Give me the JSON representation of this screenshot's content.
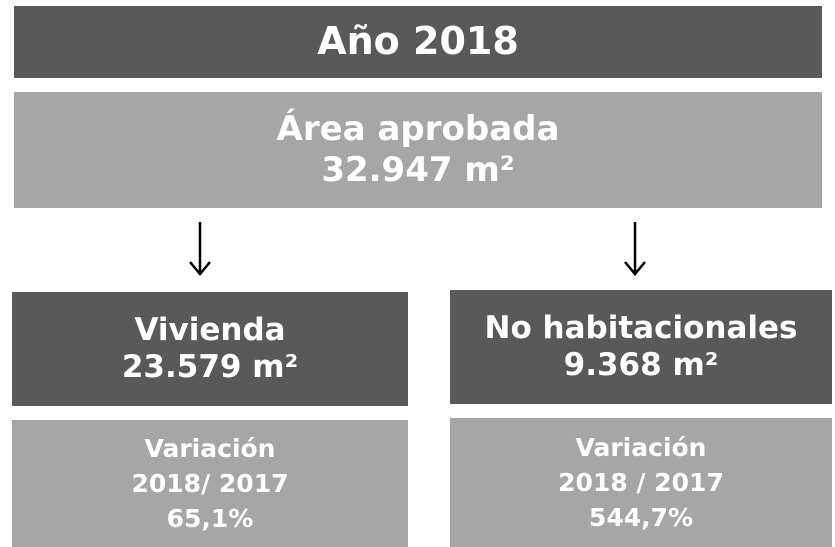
{
  "header": {
    "title": "Año 2018"
  },
  "total": {
    "label": "Área aprobada",
    "value": "32.947 m²"
  },
  "branches": [
    {
      "label": "Vivienda",
      "value": "23.579 m²",
      "variation": {
        "label": "Variación",
        "period": "2018/ 2017",
        "value": "65,1%"
      }
    },
    {
      "label": "No habitacionales",
      "value": "9.368 m²",
      "variation": {
        "label": "Variación",
        "period": "2018 / 2017",
        "value": "544,7%"
      }
    }
  ]
}
